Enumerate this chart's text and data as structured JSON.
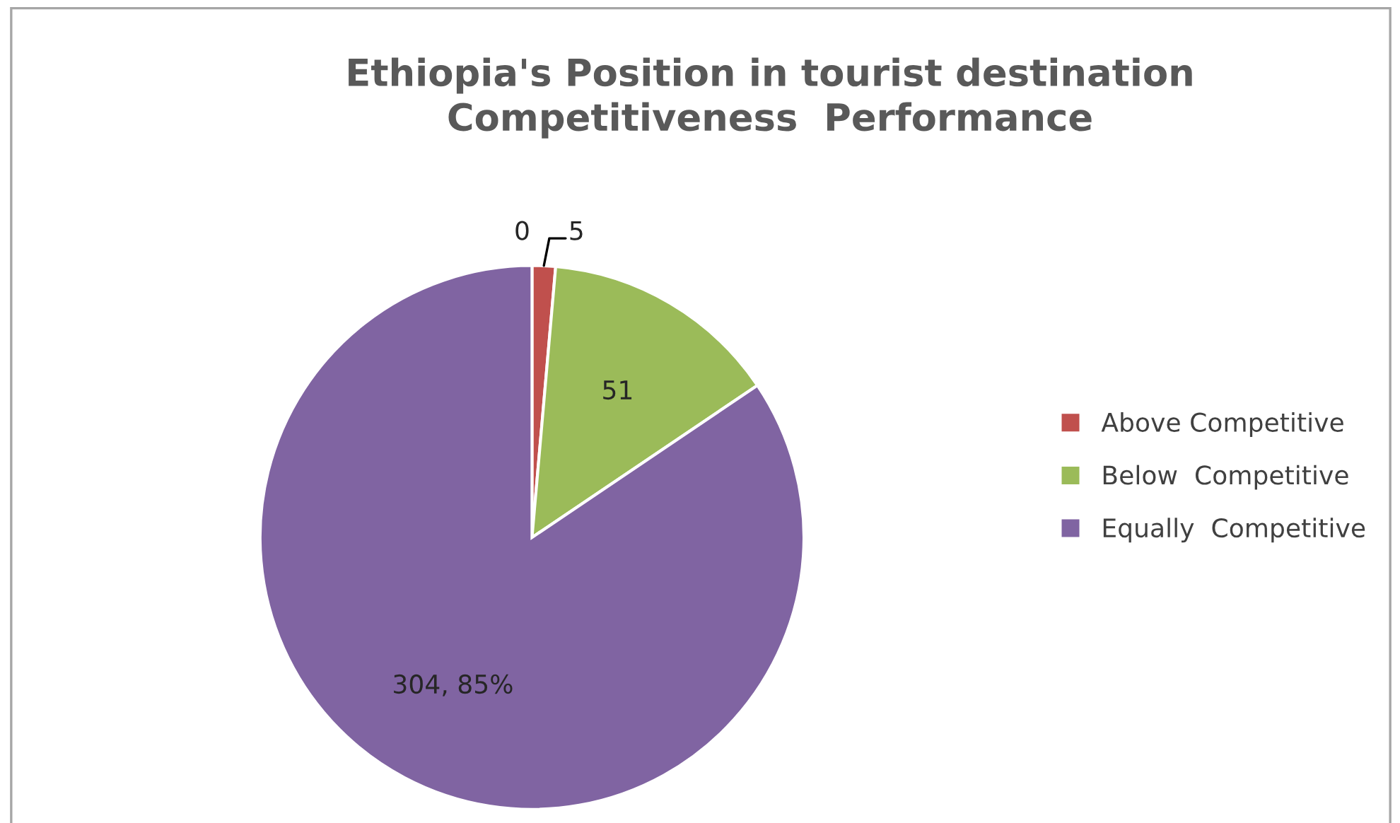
{
  "chart_data": {
    "type": "pie",
    "title": "Ethiopia's Position in tourist destination\nCompetitiveness  Performance",
    "categories": [
      "Above Competitive",
      "Below  Competitive",
      "Equally  Competitive"
    ],
    "values": [
      5,
      51,
      304
    ],
    "colors": [
      "#c0504d",
      "#9bbb59",
      "#8064a2"
    ],
    "value_labels": [
      "5",
      "51",
      "304, 85%"
    ],
    "annotations": [
      "0"
    ],
    "legend": "right"
  }
}
